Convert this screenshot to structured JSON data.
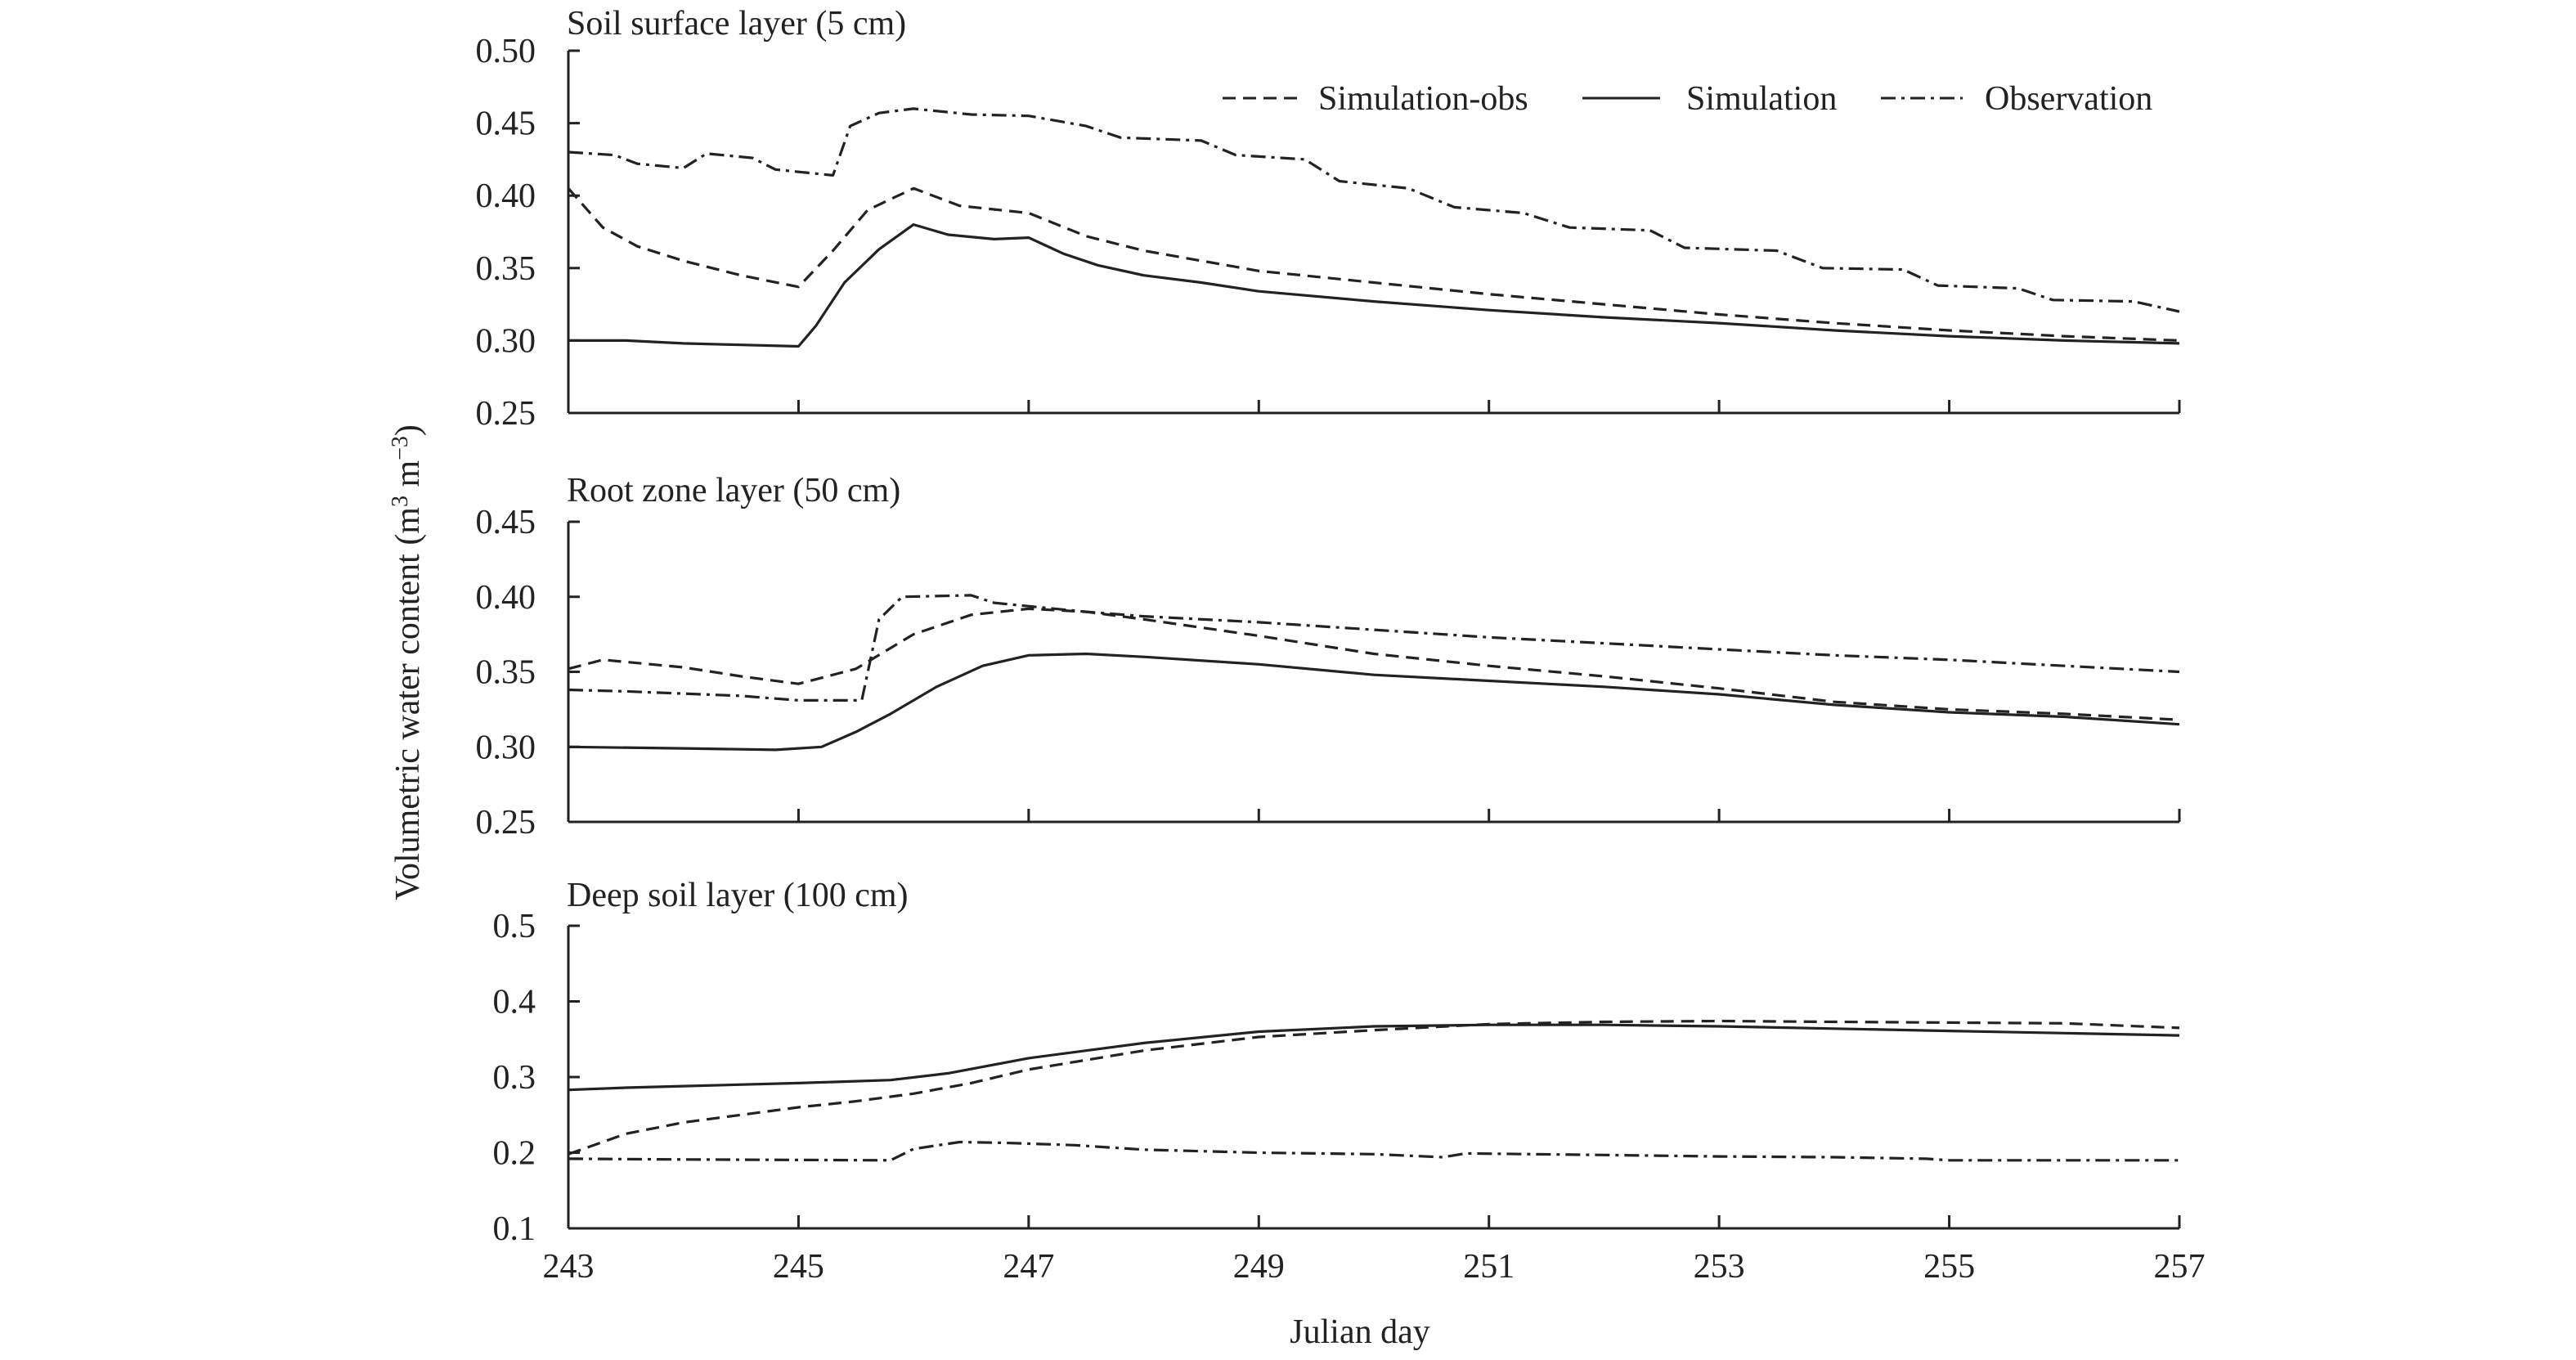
{
  "chart_data": {
    "type": "line",
    "xlabel": "Julian day",
    "ylabel": "Volumetric water content (m3 m−3)",
    "ylabel_parts": {
      "main": "Volumetric water content (m",
      "sup1": "3",
      "mid": " m",
      "sup2": "−3",
      "end": ")"
    },
    "xlim": [
      243,
      257
    ],
    "x_ticks": [
      243,
      245,
      247,
      249,
      251,
      253,
      255,
      257
    ],
    "x_tick_labels": [
      "243",
      "245",
      "247",
      "249",
      "251",
      "253",
      "255",
      "257"
    ],
    "legend": {
      "placement": "top-right",
      "entries": [
        {
          "name": "Simulation-obs",
          "style": "dashed"
        },
        {
          "name": "Simulation",
          "style": "solid"
        },
        {
          "name": "Observation",
          "style": "dashdot"
        }
      ]
    },
    "panels": [
      {
        "title": "Soil surface layer (5 cm)",
        "ylim": [
          0.25,
          0.5
        ],
        "y_ticks": [
          0.25,
          0.3,
          0.35,
          0.4,
          0.45,
          0.5
        ],
        "y_tick_labels": [
          "0.25",
          "0.30",
          "0.35",
          "0.40",
          "0.45",
          "0.50"
        ],
        "series": [
          {
            "name": "Simulation-obs",
            "style": "dashed",
            "points": [
              [
                243,
                0.405
              ],
              [
                243.3,
                0.378
              ],
              [
                243.6,
                0.365
              ],
              [
                244,
                0.355
              ],
              [
                244.5,
                0.345
              ],
              [
                245,
                0.337
              ],
              [
                245.3,
                0.362
              ],
              [
                245.6,
                0.39
              ],
              [
                246,
                0.405
              ],
              [
                246.4,
                0.393
              ],
              [
                247,
                0.388
              ],
              [
                247.5,
                0.372
              ],
              [
                248,
                0.362
              ],
              [
                249,
                0.348
              ],
              [
                250,
                0.34
              ],
              [
                251,
                0.332
              ],
              [
                252,
                0.325
              ],
              [
                253,
                0.318
              ],
              [
                254,
                0.312
              ],
              [
                255,
                0.307
              ],
              [
                256,
                0.303
              ],
              [
                257,
                0.3
              ]
            ]
          },
          {
            "name": "Simulation",
            "style": "solid",
            "points": [
              [
                243,
                0.3
              ],
              [
                243.5,
                0.3
              ],
              [
                244,
                0.298
              ],
              [
                244.5,
                0.297
              ],
              [
                245,
                0.296
              ],
              [
                245.15,
                0.31
              ],
              [
                245.4,
                0.34
              ],
              [
                245.7,
                0.363
              ],
              [
                246,
                0.38
              ],
              [
                246.3,
                0.373
              ],
              [
                246.7,
                0.37
              ],
              [
                247,
                0.371
              ],
              [
                247.3,
                0.36
              ],
              [
                247.6,
                0.352
              ],
              [
                248,
                0.345
              ],
              [
                248.5,
                0.34
              ],
              [
                249,
                0.334
              ],
              [
                250,
                0.327
              ],
              [
                251,
                0.321
              ],
              [
                252,
                0.316
              ],
              [
                253,
                0.312
              ],
              [
                254,
                0.307
              ],
              [
                255,
                0.303
              ],
              [
                256,
                0.3
              ],
              [
                257,
                0.298
              ]
            ]
          },
          {
            "name": "Observation",
            "style": "dashdot",
            "points": [
              [
                243,
                0.43
              ],
              [
                243.4,
                0.428
              ],
              [
                243.6,
                0.422
              ],
              [
                244,
                0.419
              ],
              [
                244.2,
                0.429
              ],
              [
                244.6,
                0.426
              ],
              [
                244.8,
                0.418
              ],
              [
                245.3,
                0.414
              ],
              [
                245.45,
                0.448
              ],
              [
                245.7,
                0.457
              ],
              [
                246,
                0.46
              ],
              [
                246.5,
                0.456
              ],
              [
                247,
                0.455
              ],
              [
                247.5,
                0.448
              ],
              [
                247.8,
                0.44
              ],
              [
                248.5,
                0.438
              ],
              [
                248.8,
                0.428
              ],
              [
                249.4,
                0.425
              ],
              [
                249.7,
                0.41
              ],
              [
                250.3,
                0.405
              ],
              [
                250.7,
                0.392
              ],
              [
                251.3,
                0.388
              ],
              [
                251.7,
                0.378
              ],
              [
                252.4,
                0.376
              ],
              [
                252.7,
                0.364
              ],
              [
                253.5,
                0.362
              ],
              [
                253.9,
                0.35
              ],
              [
                254.6,
                0.349
              ],
              [
                254.9,
                0.338
              ],
              [
                255.6,
                0.336
              ],
              [
                255.9,
                0.328
              ],
              [
                256.6,
                0.327
              ],
              [
                257,
                0.32
              ]
            ]
          }
        ]
      },
      {
        "title": "Root zone layer (50 cm)",
        "ylim": [
          0.25,
          0.45
        ],
        "y_ticks": [
          0.25,
          0.3,
          0.35,
          0.4,
          0.45
        ],
        "y_tick_labels": [
          "0.25",
          "0.30",
          "0.35",
          "0.40",
          "0.45"
        ],
        "series": [
          {
            "name": "Simulation-obs",
            "style": "dashed",
            "points": [
              [
                243,
                0.352
              ],
              [
                243.3,
                0.358
              ],
              [
                244,
                0.353
              ],
              [
                244.5,
                0.347
              ],
              [
                245,
                0.342
              ],
              [
                245.5,
                0.352
              ],
              [
                246,
                0.375
              ],
              [
                246.5,
                0.388
              ],
              [
                247,
                0.392
              ],
              [
                247.5,
                0.39
              ],
              [
                248,
                0.385
              ],
              [
                249,
                0.374
              ],
              [
                250,
                0.362
              ],
              [
                251,
                0.354
              ],
              [
                252,
                0.347
              ],
              [
                253,
                0.339
              ],
              [
                254,
                0.33
              ],
              [
                255,
                0.325
              ],
              [
                256,
                0.322
              ],
              [
                257,
                0.318
              ]
            ]
          },
          {
            "name": "Simulation",
            "style": "solid",
            "points": [
              [
                243,
                0.3
              ],
              [
                244,
                0.299
              ],
              [
                244.8,
                0.298
              ],
              [
                245.2,
                0.3
              ],
              [
                245.5,
                0.31
              ],
              [
                245.8,
                0.322
              ],
              [
                246.2,
                0.34
              ],
              [
                246.6,
                0.354
              ],
              [
                247,
                0.361
              ],
              [
                247.5,
                0.362
              ],
              [
                248,
                0.36
              ],
              [
                249,
                0.355
              ],
              [
                250,
                0.348
              ],
              [
                251,
                0.344
              ],
              [
                252,
                0.34
              ],
              [
                253,
                0.335
              ],
              [
                254,
                0.328
              ],
              [
                255,
                0.323
              ],
              [
                256,
                0.32
              ],
              [
                257,
                0.315
              ]
            ]
          },
          {
            "name": "Observation",
            "style": "dashdot",
            "points": [
              [
                243,
                0.338
              ],
              [
                243.5,
                0.337
              ],
              [
                244.5,
                0.334
              ],
              [
                245,
                0.331
              ],
              [
                245.55,
                0.331
              ],
              [
                245.7,
                0.385
              ],
              [
                245.9,
                0.4
              ],
              [
                246.5,
                0.401
              ],
              [
                246.7,
                0.396
              ],
              [
                247.5,
                0.39
              ],
              [
                248,
                0.387
              ],
              [
                249,
                0.383
              ],
              [
                250,
                0.378
              ],
              [
                251,
                0.373
              ],
              [
                252,
                0.369
              ],
              [
                253,
                0.365
              ],
              [
                254,
                0.361
              ],
              [
                255,
                0.358
              ],
              [
                256,
                0.354
              ],
              [
                257,
                0.35
              ]
            ]
          }
        ]
      },
      {
        "title": "Deep soil layer (100 cm)",
        "ylim": [
          0.1,
          0.5
        ],
        "y_ticks": [
          0.1,
          0.2,
          0.3,
          0.4,
          0.5
        ],
        "y_tick_labels": [
          "0.1",
          "0.2",
          "0.3",
          "0.4",
          "0.5"
        ],
        "series": [
          {
            "name": "Simulation-obs",
            "style": "dashed",
            "points": [
              [
                243,
                0.198
              ],
              [
                243.5,
                0.225
              ],
              [
                244,
                0.24
              ],
              [
                244.5,
                0.25
              ],
              [
                245,
                0.26
              ],
              [
                245.5,
                0.268
              ],
              [
                246,
                0.278
              ],
              [
                246.5,
                0.292
              ],
              [
                247,
                0.31
              ],
              [
                248,
                0.335
              ],
              [
                249,
                0.353
              ],
              [
                250,
                0.362
              ],
              [
                251,
                0.37
              ],
              [
                252,
                0.373
              ],
              [
                253,
                0.374
              ],
              [
                254,
                0.373
              ],
              [
                255,
                0.372
              ],
              [
                256,
                0.371
              ],
              [
                257,
                0.365
              ]
            ]
          },
          {
            "name": "Simulation",
            "style": "solid",
            "points": [
              [
                243,
                0.283
              ],
              [
                243.5,
                0.286
              ],
              [
                244,
                0.288
              ],
              [
                245,
                0.292
              ],
              [
                245.8,
                0.296
              ],
              [
                246.3,
                0.305
              ],
              [
                247,
                0.325
              ],
              [
                248,
                0.345
              ],
              [
                249,
                0.36
              ],
              [
                250,
                0.367
              ],
              [
                251,
                0.369
              ],
              [
                252,
                0.369
              ],
              [
                253,
                0.367
              ],
              [
                254,
                0.364
              ],
              [
                255,
                0.361
              ],
              [
                256,
                0.358
              ],
              [
                257,
                0.355
              ]
            ]
          },
          {
            "name": "Observation",
            "style": "dashdot",
            "points": [
              [
                243,
                0.192
              ],
              [
                244,
                0.191
              ],
              [
                245.8,
                0.19
              ],
              [
                246,
                0.205
              ],
              [
                246.4,
                0.214
              ],
              [
                246.8,
                0.213
              ],
              [
                247.4,
                0.21
              ],
              [
                248,
                0.204
              ],
              [
                249,
                0.2
              ],
              [
                250,
                0.198
              ],
              [
                250.6,
                0.194
              ],
              [
                250.8,
                0.199
              ],
              [
                252,
                0.197
              ],
              [
                253,
                0.195
              ],
              [
                254,
                0.194
              ],
              [
                254.8,
                0.192
              ],
              [
                255,
                0.19
              ],
              [
                257,
                0.19
              ]
            ]
          }
        ]
      }
    ]
  }
}
